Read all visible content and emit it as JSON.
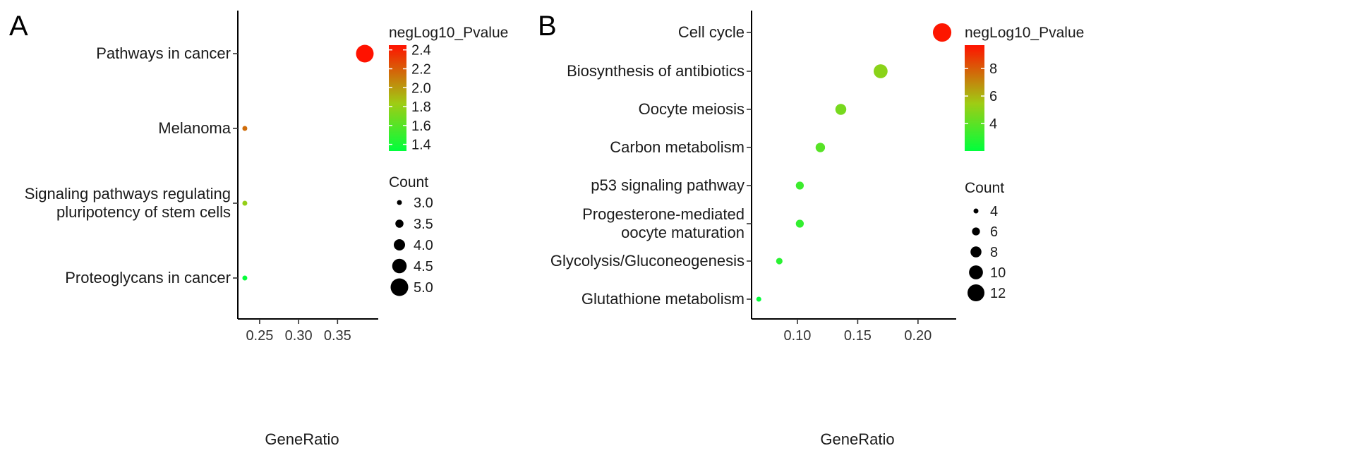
{
  "chart_data": [
    {
      "panel": "A",
      "type": "scatter",
      "title": "",
      "xlabel": "GeneRatio",
      "ylabel": "",
      "categories": [
        "Pathways in cancer",
        "Melanoma",
        "Signaling pathways regulating\npluripotency of stem cells",
        "Proteoglycans in cancer"
      ],
      "points": [
        {
          "term": "Pathways in cancer",
          "gene_ratio": 0.385,
          "count": 5,
          "neglog10_pvalue": 2.45
        },
        {
          "term": "Melanoma",
          "gene_ratio": 0.231,
          "count": 3,
          "neglog10_pvalue": 2.15
        },
        {
          "term": "Signaling pathways regulating\npluripotency of stem cells",
          "gene_ratio": 0.231,
          "count": 3,
          "neglog10_pvalue": 1.8
        },
        {
          "term": "Proteoglycans in cancer",
          "gene_ratio": 0.231,
          "count": 3,
          "neglog10_pvalue": 1.35
        }
      ],
      "xlim": [
        0.222,
        0.395
      ],
      "xticks": [
        "0.25",
        "0.30",
        "0.35"
      ],
      "xtick_values": [
        0.25,
        0.3,
        0.35
      ],
      "grid": false,
      "legend_placement": "right",
      "color_legend": {
        "title": "negLog10_Pvalue",
        "range": [
          1.33,
          2.45
        ],
        "ticks": [
          "1.4",
          "1.6",
          "1.8",
          "2.0",
          "2.2",
          "2.4"
        ],
        "tick_values": [
          1.4,
          1.6,
          1.8,
          2.0,
          2.2,
          2.4
        ],
        "low_color": "#00ff3c",
        "mid_color": "#9fcc14",
        "high_color": "#ff1200"
      },
      "size_legend": {
        "title": "Count",
        "labels": [
          "3.0",
          "3.5",
          "4.0",
          "4.5",
          "5.0"
        ],
        "values": [
          3.0,
          3.5,
          4.0,
          4.5,
          5.0
        ]
      }
    },
    {
      "panel": "B",
      "type": "scatter",
      "title": "",
      "xlabel": "GeneRatio",
      "ylabel": "",
      "categories": [
        "Cell cycle",
        "Biosynthesis of antibiotics",
        "Oocyte meiosis",
        "Carbon metabolism",
        "p53 signaling pathway",
        "Progesterone-mediated\noocyte maturation",
        "Glycolysis/Gluconeogenesis",
        "Glutathione metabolism"
      ],
      "points": [
        {
          "term": "Cell cycle",
          "gene_ratio": 0.22,
          "count": 13,
          "neglog10_pvalue": 9.6
        },
        {
          "term": "Biosynthesis of antibiotics",
          "gene_ratio": 0.169,
          "count": 10,
          "neglog10_pvalue": 5.0
        },
        {
          "term": "Oocyte meiosis",
          "gene_ratio": 0.136,
          "count": 8,
          "neglog10_pvalue": 4.6
        },
        {
          "term": "Carbon metabolism",
          "gene_ratio": 0.119,
          "count": 7,
          "neglog10_pvalue": 3.9
        },
        {
          "term": "p53 signaling pathway",
          "gene_ratio": 0.102,
          "count": 6,
          "neglog10_pvalue": 3.3
        },
        {
          "term": "Progesterone-mediated\noocyte maturation",
          "gene_ratio": 0.102,
          "count": 6,
          "neglog10_pvalue": 3.1
        },
        {
          "term": "Glycolysis/Gluconeogenesis",
          "gene_ratio": 0.085,
          "count": 5,
          "neglog10_pvalue": 2.9
        },
        {
          "term": "Glutathione metabolism",
          "gene_ratio": 0.068,
          "count": 4,
          "neglog10_pvalue": 2.1
        }
      ],
      "xlim": [
        0.062,
        0.227
      ],
      "xticks": [
        "0.10",
        "0.15",
        "0.20"
      ],
      "xtick_values": [
        0.1,
        0.15,
        0.2
      ],
      "grid": false,
      "legend_placement": "right",
      "color_legend": {
        "title": "negLog10_Pvalue",
        "range": [
          2.0,
          9.7
        ],
        "ticks": [
          "4",
          "6",
          "8"
        ],
        "tick_values": [
          4,
          6,
          8
        ],
        "low_color": "#00ff3c",
        "mid_color": "#9fcc14",
        "high_color": "#ff1200"
      },
      "size_legend": {
        "title": "Count",
        "labels": [
          "4",
          "6",
          "8",
          "10",
          "12"
        ],
        "values": [
          4,
          6,
          8,
          10,
          12
        ]
      }
    }
  ]
}
